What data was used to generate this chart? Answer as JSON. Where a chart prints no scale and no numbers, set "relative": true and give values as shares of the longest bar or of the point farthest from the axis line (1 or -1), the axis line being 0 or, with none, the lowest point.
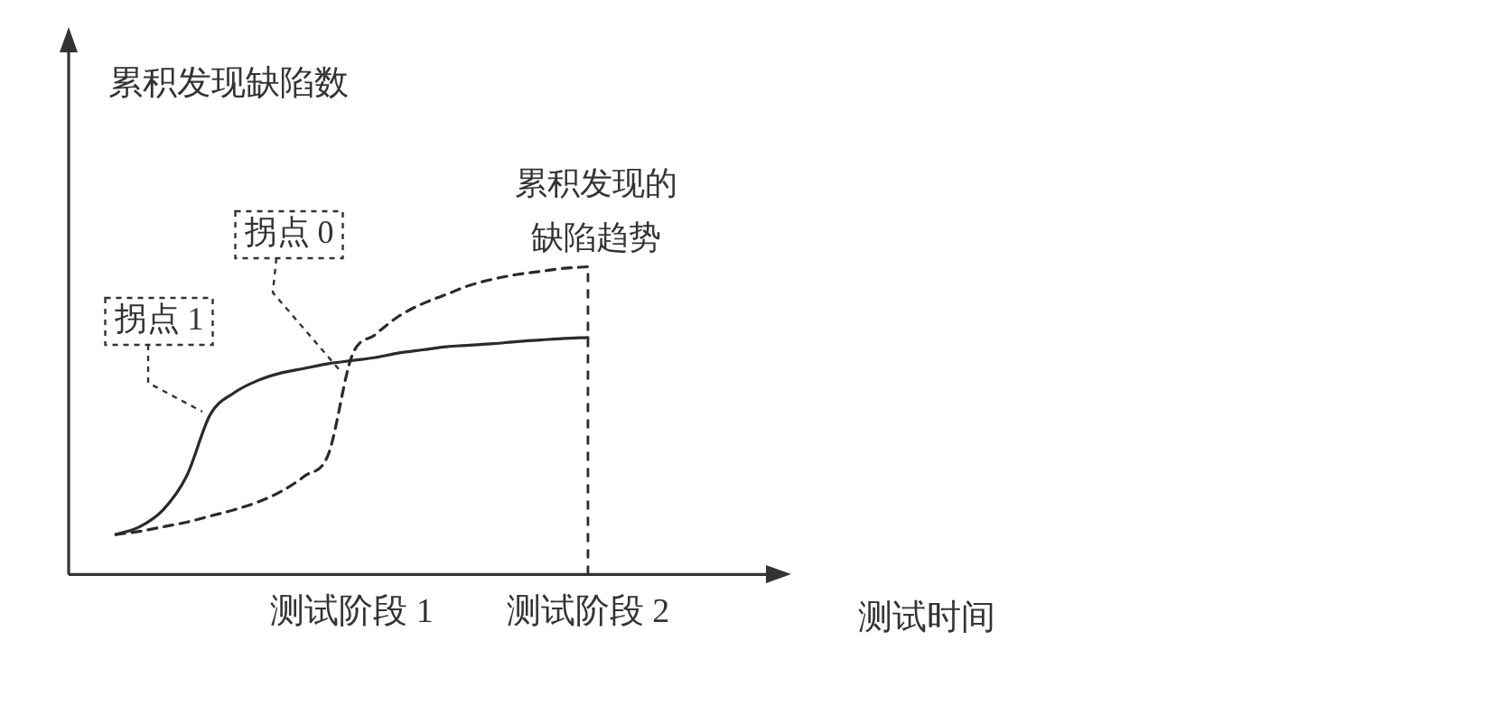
{
  "chart_data": {
    "type": "line",
    "relative": true,
    "xlabel": "测试时间",
    "ylabel": "累积发现缺陷数",
    "categories": [
      null,
      null,
      null,
      null,
      null,
      null,
      null,
      null,
      null,
      null,
      null,
      null,
      "测试阶段 1",
      null,
      null,
      null,
      null,
      null,
      null,
      null,
      null,
      null,
      "测试阶段 2",
      null,
      null,
      null,
      null,
      null,
      null,
      null,
      null
    ],
    "series": [
      {
        "color": "#2a2a2a",
        "line_style": "solid",
        "values": [
          null,
          null,
          0.13,
          0.155,
          0.21,
          0.32,
          0.52,
          0.59,
          0.63,
          0.655,
          0.67,
          0.685,
          0.695,
          0.705,
          0.72,
          0.73,
          0.74,
          0.745,
          0.75,
          0.757,
          0.762,
          0.767,
          0.77,
          null,
          null,
          null,
          null,
          null,
          null,
          null,
          null
        ]
      },
      {
        "color": "#2a2a2a",
        "line_style": "dashed",
        "values": [
          null,
          null,
          0.13,
          0.14,
          0.155,
          0.17,
          0.19,
          0.21,
          0.235,
          0.27,
          0.32,
          0.39,
          0.71,
          0.78,
          0.84,
          0.88,
          0.91,
          0.94,
          0.96,
          0.975,
          0.985,
          0.995,
          1,
          null,
          null,
          null,
          null,
          null,
          null,
          null,
          null
        ]
      }
    ],
    "ref_lines": [
      {
        "axis": "x",
        "value": "测试阶段 2",
        "line_style": "dashed",
        "color": "#2a2a2a"
      }
    ],
    "annotations": [
      "拐点 1",
      "拐点 0",
      "累积发现的缺陷趋势"
    ],
    "grid": false,
    "legend": false,
    "marker": "none"
  }
}
